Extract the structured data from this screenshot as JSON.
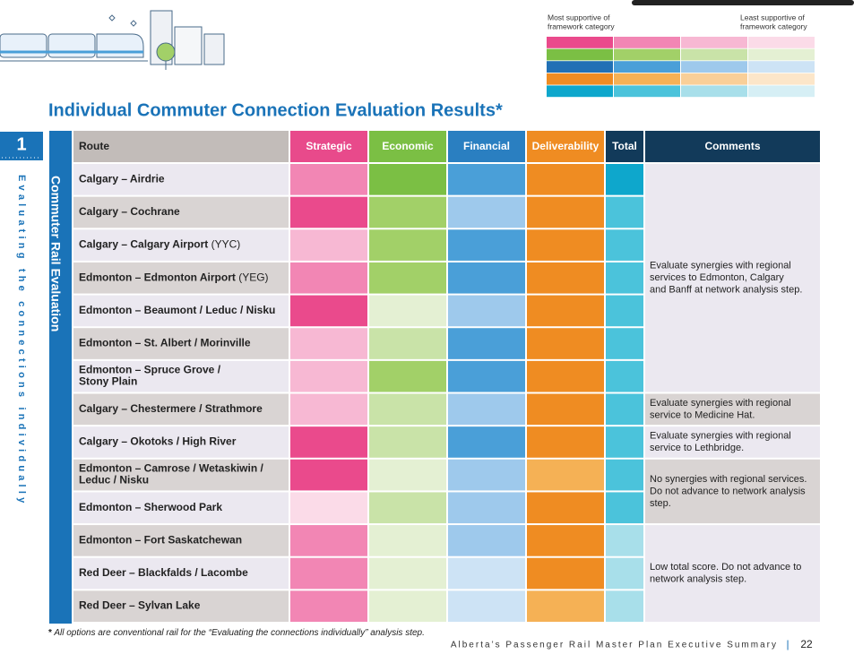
{
  "title": "Individual Commuter Connection Evaluation Results*",
  "legend": {
    "most": [
      "Most supportive of",
      "framework category"
    ],
    "least": [
      "Least supportive of",
      "framework category"
    ],
    "palette": [
      [
        "#ea4a8c",
        "#f286b4",
        "#f7b8d3",
        "#fbdbe8"
      ],
      [
        "#7bbf44",
        "#a2d068",
        "#c9e3a8",
        "#e4f0d3"
      ],
      [
        "#2170b5",
        "#4a9fd8",
        "#9ec9ec",
        "#cde3f5"
      ],
      [
        "#ef8c22",
        "#f5b155",
        "#f9cf98",
        "#fce6c9"
      ],
      [
        "#0ea7cc",
        "#4bc3db",
        "#a8dfea",
        "#d6eff5"
      ]
    ]
  },
  "section": {
    "number": "1",
    "side_label": "Evaluating the connections individually",
    "group_label": "Commuter Rail Evaluation"
  },
  "table": {
    "headers": [
      "Route",
      "Strategic",
      "Economic",
      "Financial",
      "Deliverability",
      "Total",
      "Comments"
    ],
    "header_colors": [
      "#c2bcb9",
      "#e84a8b",
      "#7bbf44",
      "#2a7fc1",
      "#ef8c22",
      "#123a5a",
      "#123a5a"
    ],
    "rows": [
      {
        "route": [
          "Calgary – Airdrie"
        ],
        "cells": [
          "#f286b4",
          "#7bbf44",
          "#4a9fd8",
          "#ef8c22",
          "#0ea7cc"
        ]
      },
      {
        "route": [
          "Calgary – Cochrane"
        ],
        "cells": [
          "#ea4a8c",
          "#a2d068",
          "#9ec9ec",
          "#ef8c22",
          "#4bc3db"
        ]
      },
      {
        "route": [
          "Calgary – Calgary Airport"
        ],
        "code": "(YYC)",
        "cells": [
          "#f7b8d3",
          "#a2d068",
          "#4a9fd8",
          "#ef8c22",
          "#4bc3db"
        ]
      },
      {
        "route": [
          "Edmonton – Edmonton Airport"
        ],
        "code": "(YEG)",
        "cells": [
          "#f286b4",
          "#a2d068",
          "#4a9fd8",
          "#ef8c22",
          "#4bc3db"
        ]
      },
      {
        "route": [
          "Edmonton – Beaumont / Leduc / Nisku"
        ],
        "cells": [
          "#ea4a8c",
          "#e4f0d3",
          "#9ec9ec",
          "#ef8c22",
          "#4bc3db"
        ]
      },
      {
        "route": [
          "Edmonton – St. Albert / Morinville"
        ],
        "cells": [
          "#f7b8d3",
          "#c9e3a8",
          "#4a9fd8",
          "#ef8c22",
          "#4bc3db"
        ]
      },
      {
        "route": [
          "Edmonton – Spruce Grove /",
          "Stony Plain"
        ],
        "cells": [
          "#f7b8d3",
          "#a2d068",
          "#4a9fd8",
          "#ef8c22",
          "#4bc3db"
        ]
      },
      {
        "route": [
          "Calgary – Chestermere / Strathmore"
        ],
        "cells": [
          "#f7b8d3",
          "#c9e3a8",
          "#9ec9ec",
          "#ef8c22",
          "#4bc3db"
        ]
      },
      {
        "route": [
          "Calgary – Okotoks / High River"
        ],
        "cells": [
          "#ea4a8c",
          "#c9e3a8",
          "#4a9fd8",
          "#ef8c22",
          "#4bc3db"
        ]
      },
      {
        "route": [
          "Edmonton – Camrose / Wetaskiwin /",
          "Leduc / Nisku"
        ],
        "cells": [
          "#ea4a8c",
          "#e4f0d3",
          "#9ec9ec",
          "#f5b155",
          "#4bc3db"
        ]
      },
      {
        "route": [
          "Edmonton – Sherwood Park"
        ],
        "cells": [
          "#fbdbe8",
          "#c9e3a8",
          "#9ec9ec",
          "#ef8c22",
          "#4bc3db"
        ]
      },
      {
        "route": [
          "Edmonton – Fort Saskatchewan"
        ],
        "cells": [
          "#f286b4",
          "#e4f0d3",
          "#9ec9ec",
          "#ef8c22",
          "#a8dfea"
        ]
      },
      {
        "route": [
          "Red Deer – Blackfalds / Lacombe"
        ],
        "cells": [
          "#f286b4",
          "#e4f0d3",
          "#cde3f5",
          "#ef8c22",
          "#a8dfea"
        ]
      },
      {
        "route": [
          "Red Deer – Sylvan Lake"
        ],
        "cells": [
          "#f286b4",
          "#e4f0d3",
          "#cde3f5",
          "#f5b155",
          "#a8dfea"
        ]
      }
    ],
    "comments": [
      [
        "Evaluate synergies with regional",
        "services to Edmonton, Calgary",
        "and Banff at network analysis step."
      ],
      [
        "Evaluate synergies with regional",
        "service to Medicine Hat."
      ],
      [
        "Evaluate synergies with regional",
        "service to Lethbridge."
      ],
      [
        "No synergies with regional services.",
        "Do not advance to network analysis",
        "step."
      ],
      [
        "Low total score. Do not advance to",
        "network analysis step."
      ]
    ]
  },
  "footnote": {
    "mark": "*",
    "text": "All options are conventional rail for the “Evaluating the connections individually” analysis step."
  },
  "footer": {
    "text": "Alberta’s Passenger Rail Master Plan Executive Summary",
    "separator": "|",
    "page": "22"
  }
}
